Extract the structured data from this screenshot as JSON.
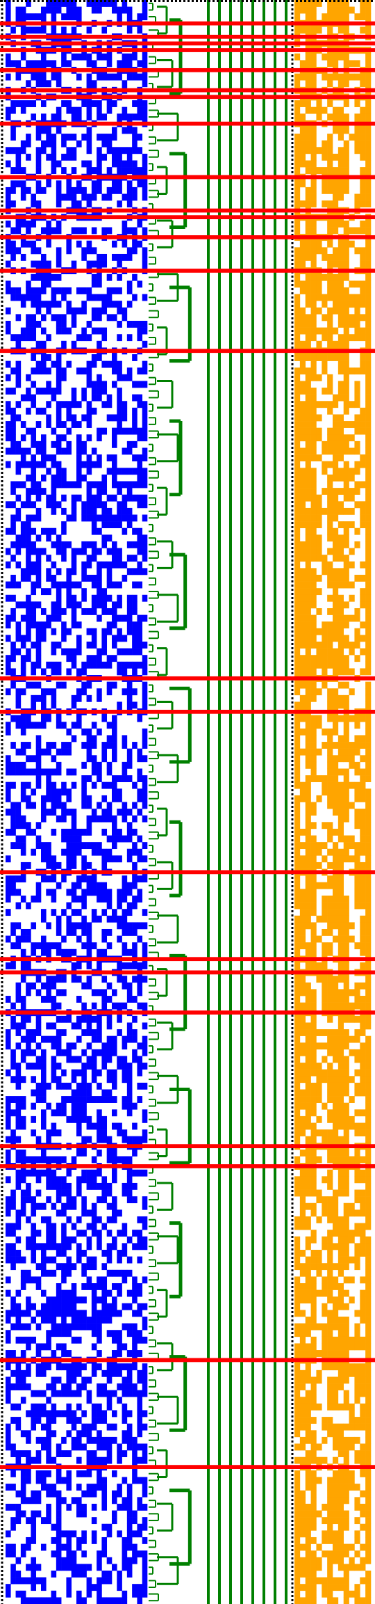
{
  "colors": {
    "background": "#ffffff",
    "left_matrix": "#0000ff",
    "right_matrix": "#ffa500",
    "dendrogram": "#008000",
    "highlight_rows": "#ff0000",
    "separator": "#000000"
  },
  "matrix": {
    "rows": 240,
    "left_columns": 28,
    "right_columns": 14,
    "left_fill_fraction": 0.5,
    "right_fill_fraction": 0.6
  },
  "highlighted_rows": [
    3,
    5,
    6,
    7,
    10,
    13,
    14,
    18,
    26,
    31,
    32,
    35,
    40,
    52,
    101,
    106,
    130,
    143,
    145,
    151,
    171,
    174,
    203,
    219
  ],
  "dendrogram": {
    "main_trunk_count": 8,
    "layout": "left-to-right"
  }
}
